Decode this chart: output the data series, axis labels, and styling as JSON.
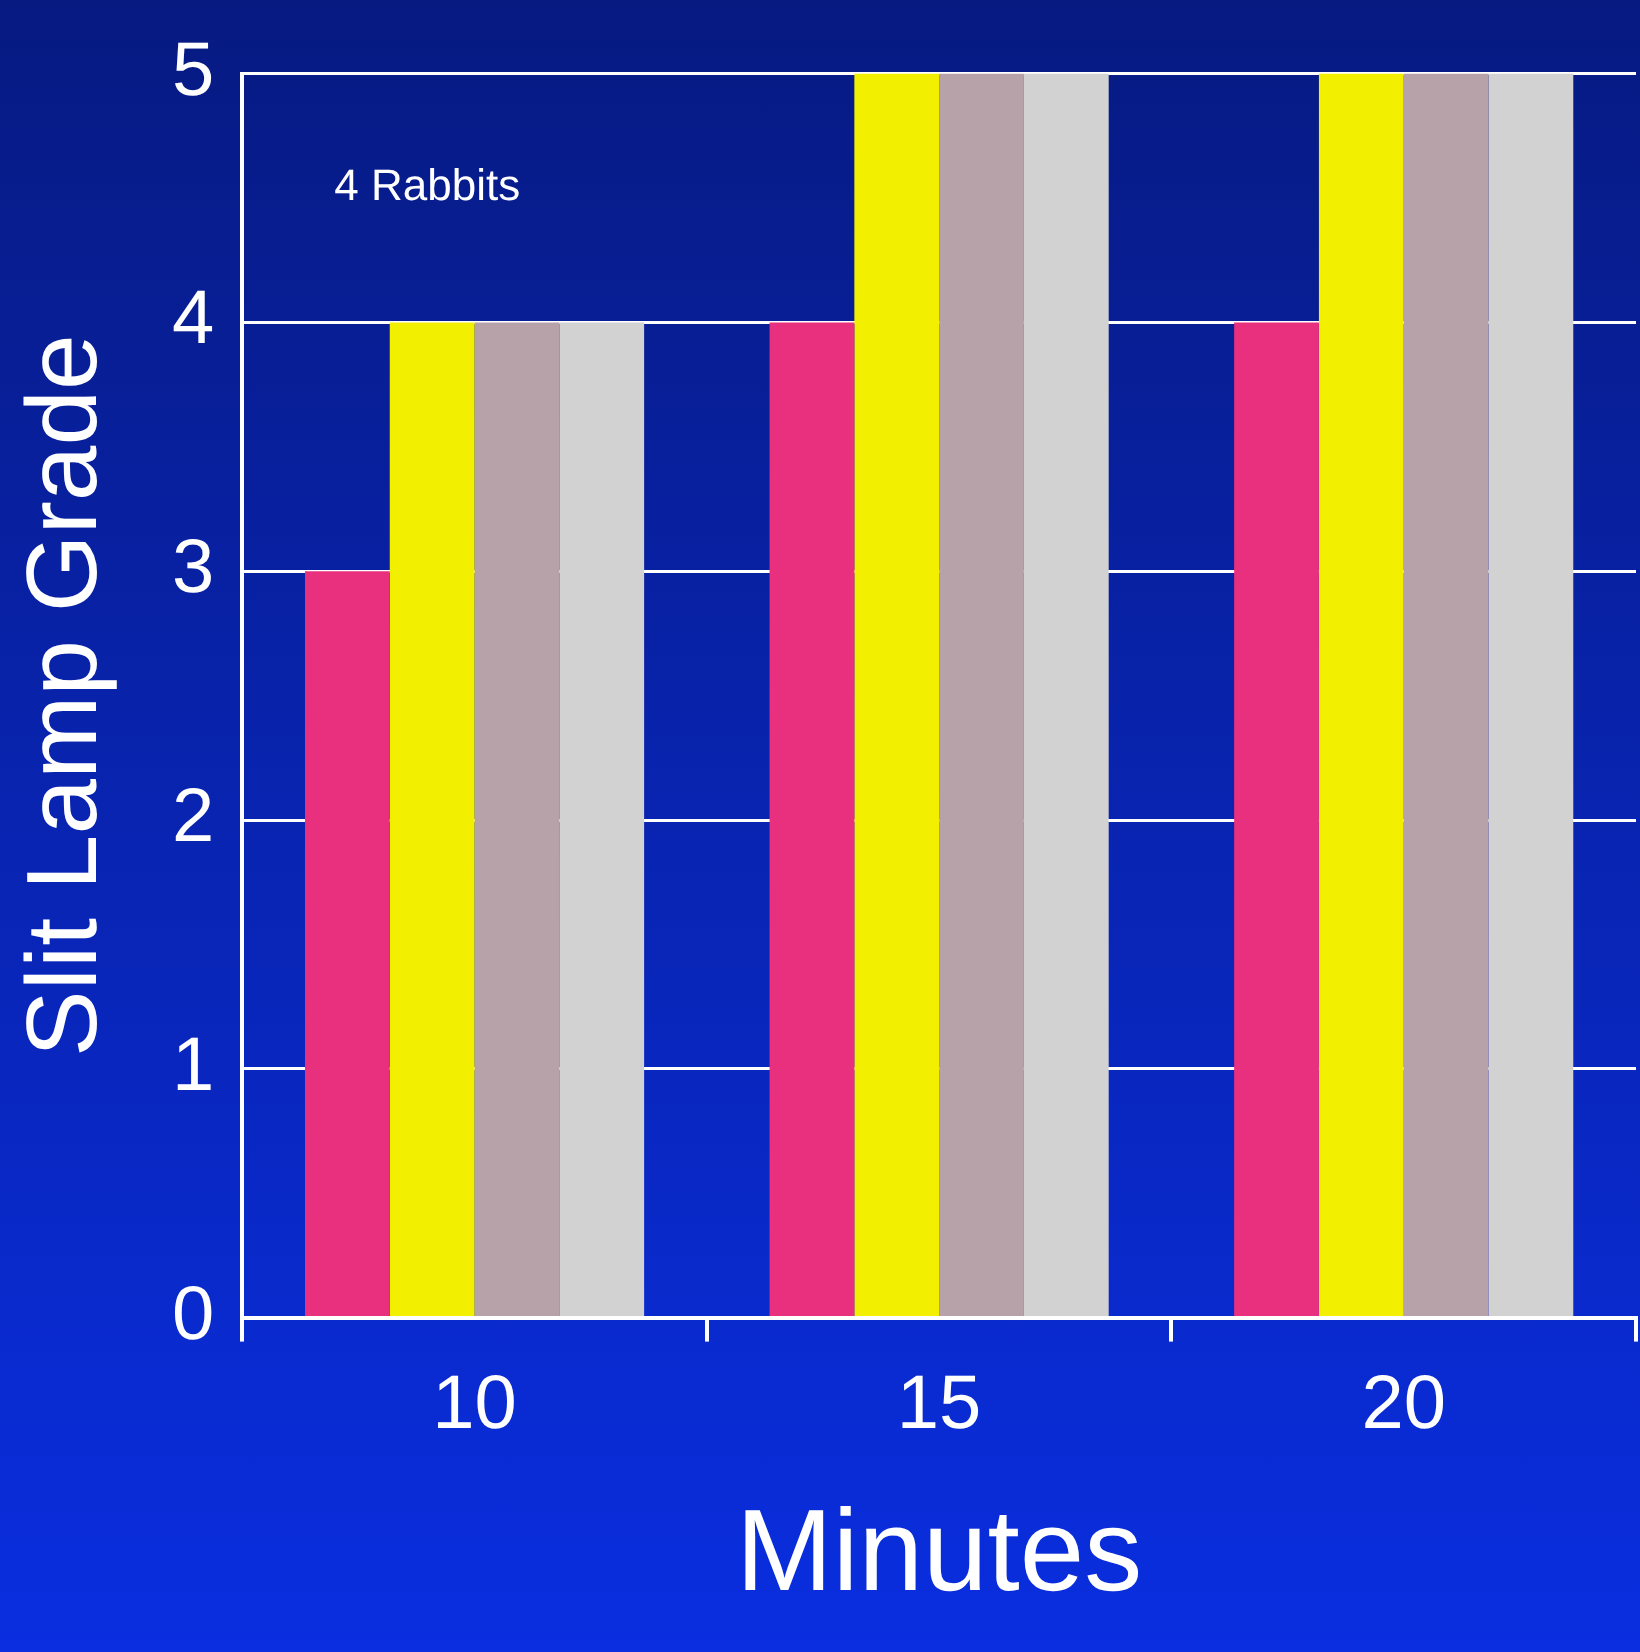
{
  "chart_data": {
    "type": "bar",
    "xlabel": "Minutes",
    "ylabel": "Slit Lamp Grade",
    "categories": [
      "10",
      "15",
      "20"
    ],
    "series": [
      {
        "color": "#e8307f",
        "values": [
          3,
          4,
          4
        ]
      },
      {
        "color": "#f2f000",
        "values": [
          4,
          5,
          5
        ]
      },
      {
        "color": "#b8a2aa",
        "values": [
          4,
          5,
          5
        ]
      },
      {
        "color": "#d2d2d2",
        "values": [
          4,
          5,
          5
        ]
      }
    ],
    "ylim": [
      0,
      5
    ],
    "yticks": [
      0,
      1,
      2,
      3,
      4,
      5
    ],
    "grid": "y",
    "legend": false,
    "annotations": [
      "4 Rabbits"
    ]
  }
}
